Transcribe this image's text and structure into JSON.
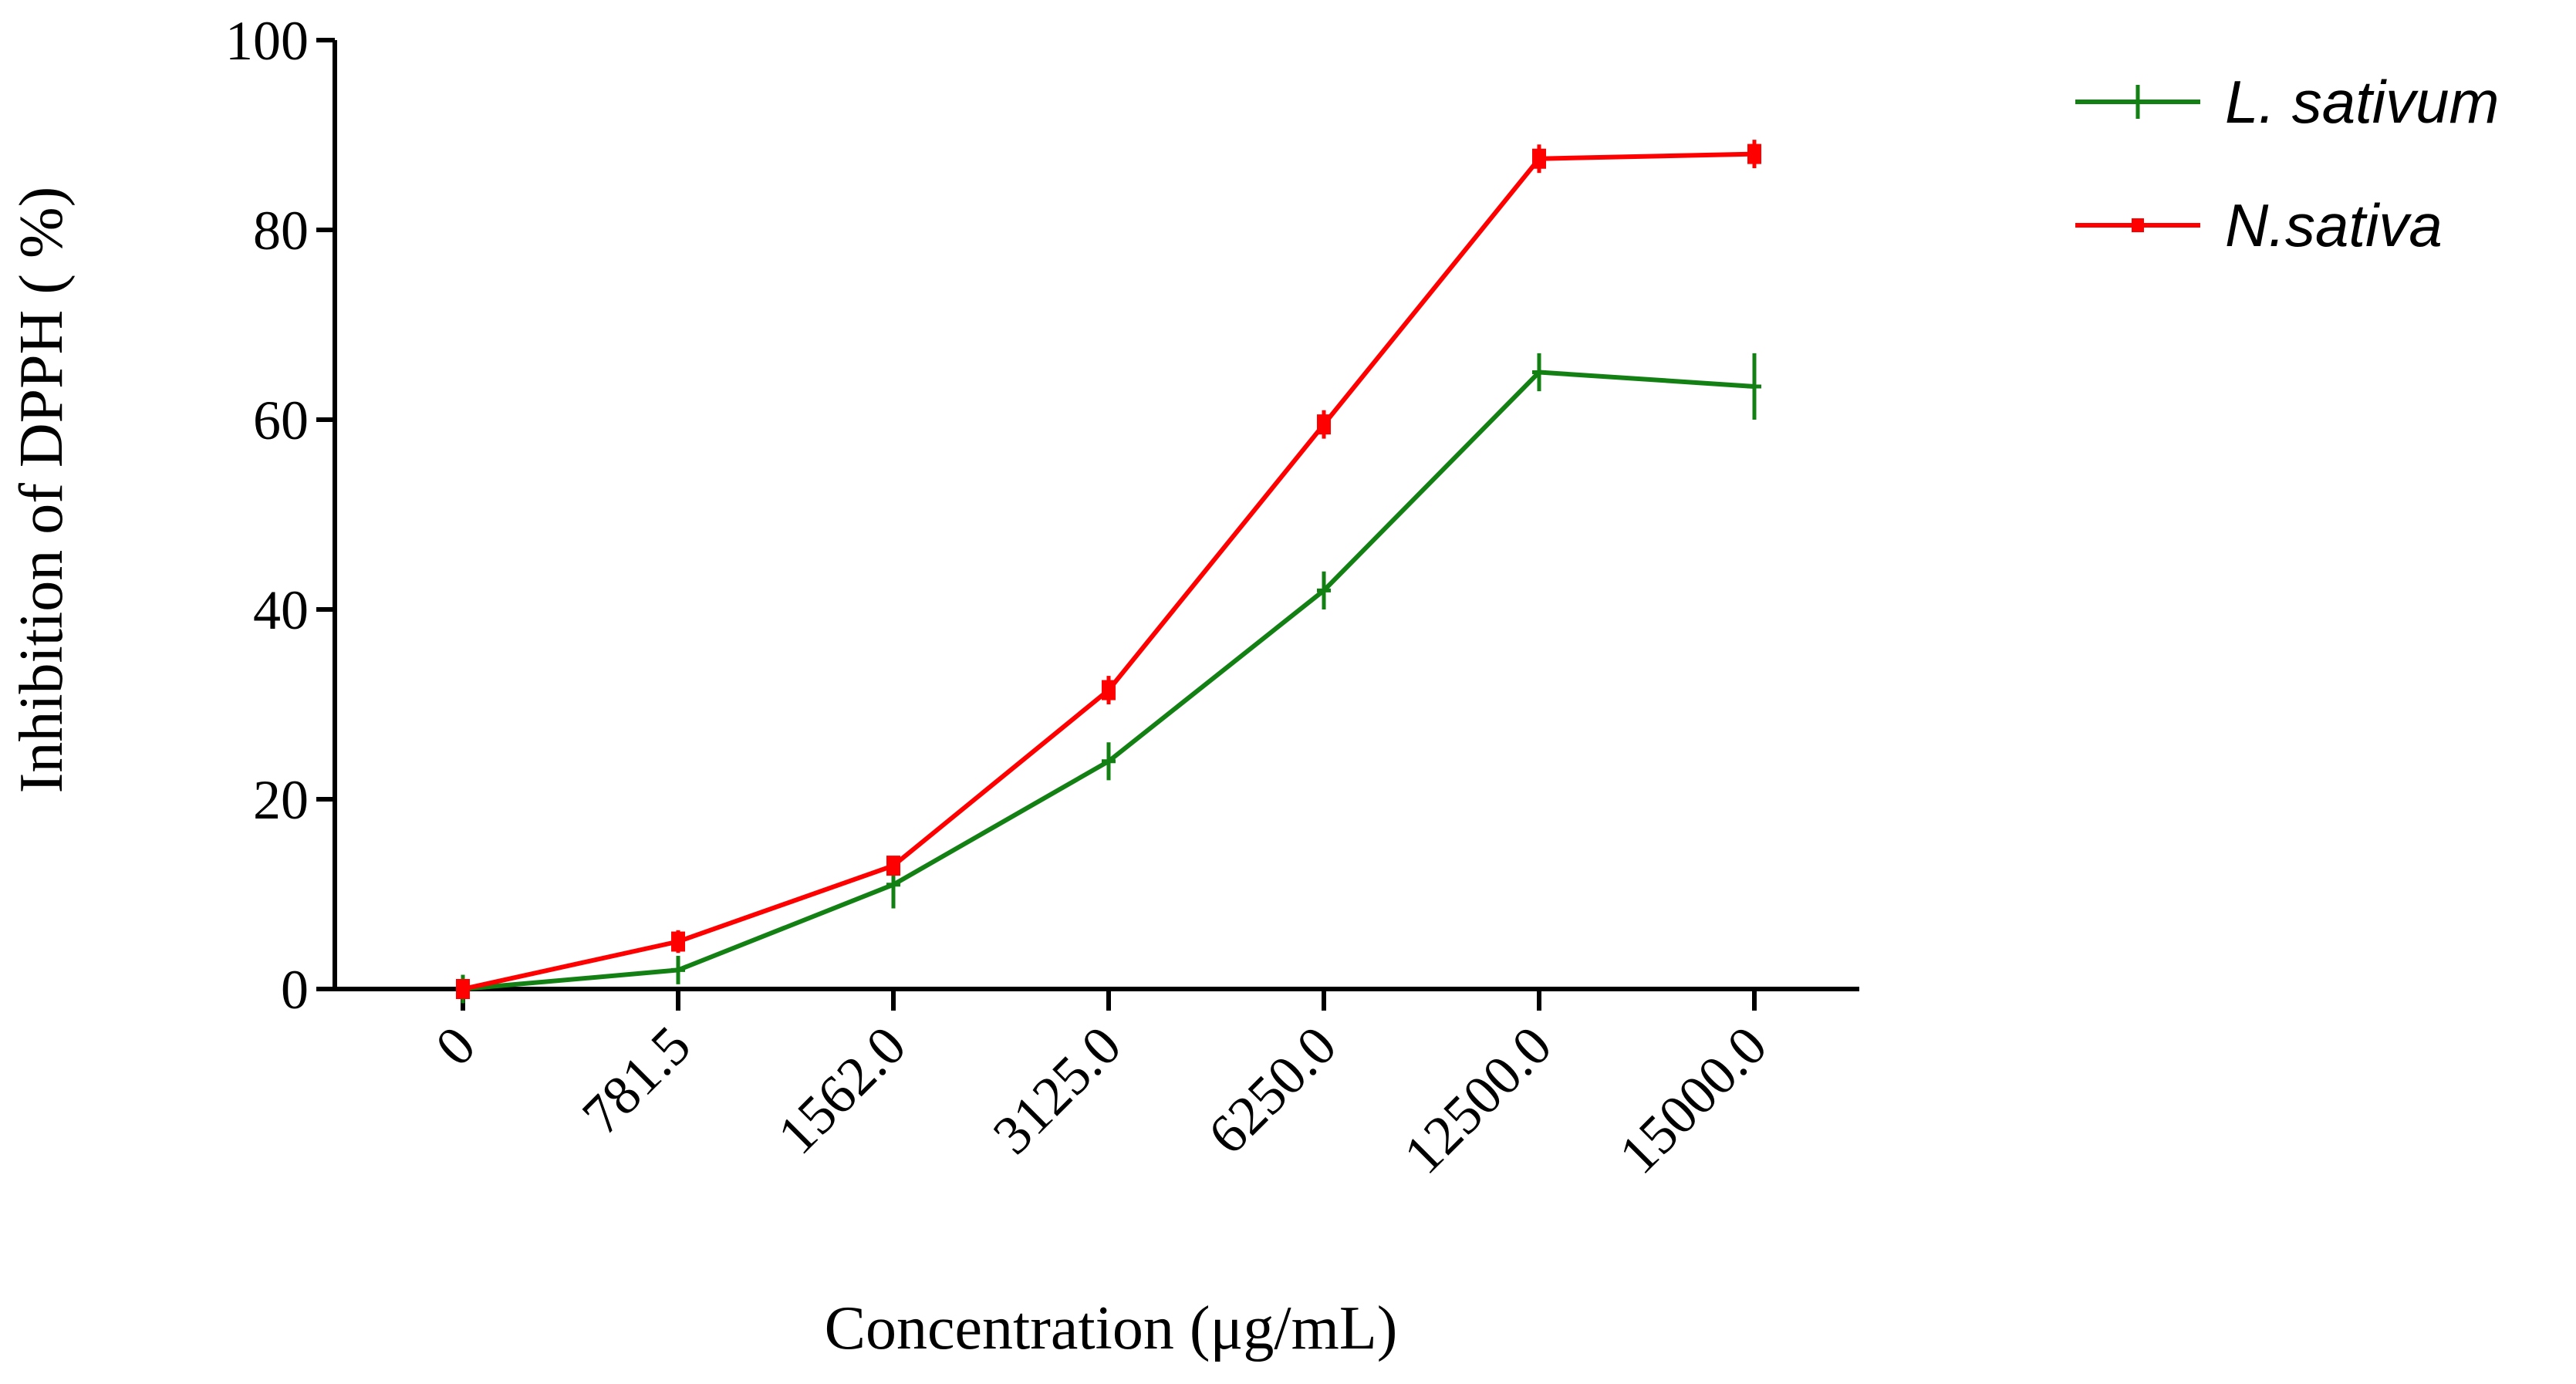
{
  "chart_data": {
    "type": "line",
    "title": "",
    "xlabel": "Concentration (μg/mL)",
    "ylabel": "Inhibition of DPPH ( %)",
    "categories": [
      "0",
      "781.5",
      "1562.0",
      "3125.0",
      "6250.0",
      "12500.0",
      "15000.0"
    ],
    "ylim": [
      0,
      100
    ],
    "yticks": [
      0,
      20,
      40,
      60,
      80,
      100
    ],
    "grid": false,
    "legend_position": "top-right",
    "series": [
      {
        "name": "L. sativum",
        "color": "#138013",
        "marker": "plus",
        "values": [
          0,
          2,
          11,
          24,
          42,
          65,
          63.5
        ],
        "errors": [
          1.5,
          1.5,
          2.5,
          2,
          2,
          2,
          3.5
        ]
      },
      {
        "name": "N.sativa",
        "color": "#ff0000",
        "marker": "square",
        "values": [
          0,
          5,
          13,
          31.5,
          59.5,
          87.5,
          88
        ],
        "errors": [
          0.5,
          1.2,
          1,
          1.5,
          1.5,
          1.5,
          1.5
        ]
      }
    ]
  }
}
